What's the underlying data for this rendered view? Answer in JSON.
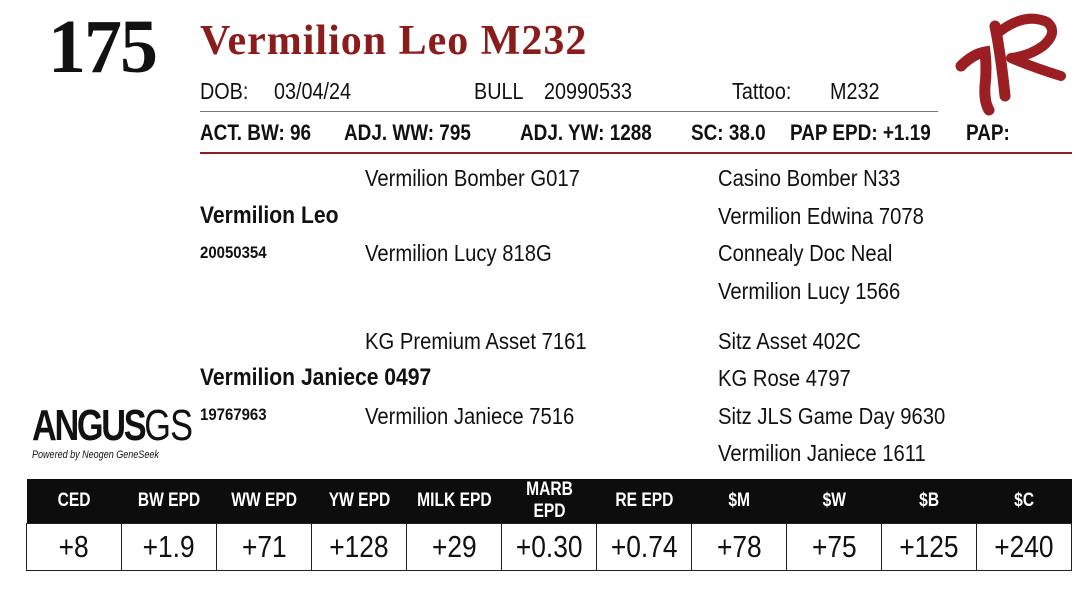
{
  "header": {
    "lot_number": "175",
    "animal_name": "Vermilion Leo M232",
    "brand_mark": "VR",
    "accent_color": "#8b1c1c"
  },
  "info": {
    "dob_label": "DOB:",
    "dob_value": "03/04/24",
    "sex_label": "BULL",
    "registration": "20990533",
    "tattoo_label": "Tattoo:",
    "tattoo_value": "M232"
  },
  "performance": {
    "act_bw": "ACT. BW: 96",
    "adj_ww": "ADJ. WW: 795",
    "adj_yw": "ADJ. YW: 1288",
    "sc": "SC: 38.0",
    "pap_epd": "PAP EPD: +1.19",
    "pap": "PAP:"
  },
  "pedigree": {
    "sire": {
      "name": "Vermilion Leo",
      "registration": "20050354",
      "sire": "Vermilion Bomber G017",
      "dam": "Vermilion Lucy 818G",
      "sire_sire": "Casino Bomber N33",
      "sire_dam": "Vermilion Edwina 7078",
      "dam_sire": "Connealy Doc Neal",
      "dam_dam": "Vermilion Lucy 1566"
    },
    "dam": {
      "name": "Vermilion Janiece 0497",
      "registration": "19767963",
      "sire": "KG Premium Asset 7161",
      "dam": "Vermilion Janiece 7516",
      "sire_sire": "Sitz Asset 402C",
      "sire_dam": "KG Rose 4797",
      "dam_sire": "Sitz JLS Game Day 9630",
      "dam_dam": "Vermilion Janiece 1611"
    }
  },
  "logo": {
    "main": "ANGUS",
    "suffix": "GS",
    "tagline": "Powered by Neogen GeneSeek"
  },
  "epds": {
    "headers": [
      "CED",
      "BW EPD",
      "WW EPD",
      "YW EPD",
      "MILK EPD",
      "MARB EPD",
      "RE EPD",
      "$M",
      "$W",
      "$B",
      "$C"
    ],
    "values": [
      "+8",
      "+1.9",
      "+71",
      "+128",
      "+29",
      "+0.30",
      "+0.74",
      "+78",
      "+75",
      "+125",
      "+240"
    ]
  }
}
